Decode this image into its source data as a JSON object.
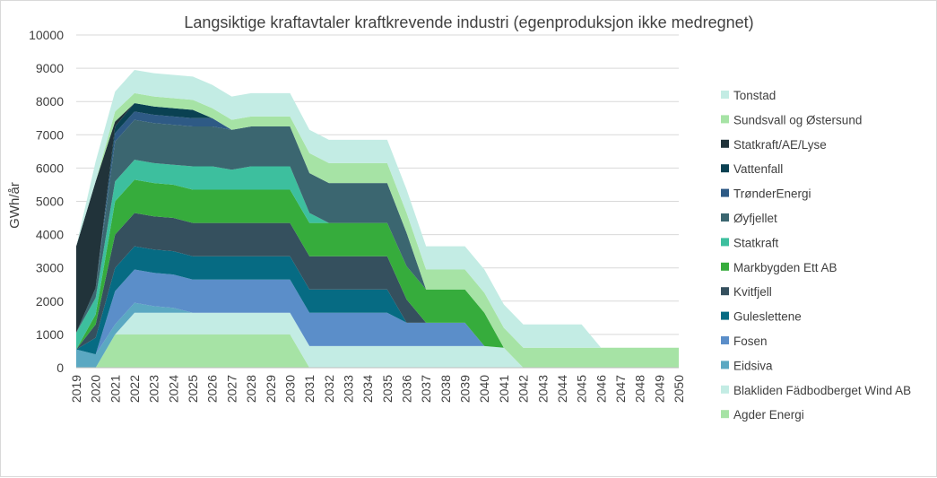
{
  "chart_data": {
    "type": "area",
    "stacked": true,
    "title": "Langsiktige kraftavtaler kraftkrevende industri (egenproduksjon ikke medregnet)",
    "xlabel": "",
    "ylabel": "GWh/år",
    "ylim": [
      0,
      10000
    ],
    "yticks": [
      0,
      1000,
      2000,
      3000,
      4000,
      5000,
      6000,
      7000,
      8000,
      9000,
      10000
    ],
    "ytick_labels": [
      "0",
      "1000",
      "2000",
      "3000",
      "4000",
      "5000",
      "6000",
      "7000",
      "8000",
      "9000",
      "10000"
    ],
    "categories": [
      "2019",
      "2020",
      "2021",
      "2022",
      "2023",
      "2024",
      "2025",
      "2026",
      "2027",
      "2028",
      "2029",
      "2030",
      "2031",
      "2032",
      "2033",
      "2034",
      "2035",
      "2036",
      "2037",
      "2038",
      "2039",
      "2040",
      "2041",
      "2042",
      "2043",
      "2044",
      "2045",
      "2046",
      "2047",
      "2048",
      "2049",
      "2050"
    ],
    "gridlines": true,
    "legend_position": "right",
    "series": [
      {
        "name": "Agder Energi",
        "color": "#a6e3a5",
        "values": [
          0,
          0,
          1000,
          1000,
          1000,
          1000,
          1000,
          1000,
          1000,
          1000,
          1000,
          1000,
          0,
          0,
          0,
          0,
          0,
          0,
          0,
          0,
          0,
          0,
          0,
          0,
          0,
          0,
          0,
          0,
          0,
          0,
          0,
          0
        ]
      },
      {
        "name": "Blakliden Fädbodberget Wind AB",
        "color": "#c3ece4",
        "values": [
          0,
          0,
          0,
          650,
          650,
          650,
          650,
          650,
          650,
          650,
          650,
          650,
          650,
          650,
          650,
          650,
          650,
          650,
          650,
          650,
          650,
          650,
          600,
          0,
          0,
          0,
          0,
          0,
          0,
          0,
          0,
          0
        ]
      },
      {
        "name": "Eidsiva",
        "color": "#5ba8c2",
        "values": [
          550,
          400,
          300,
          300,
          200,
          150,
          0,
          0,
          0,
          0,
          0,
          0,
          0,
          0,
          0,
          0,
          0,
          0,
          0,
          0,
          0,
          0,
          0,
          0,
          0,
          0,
          0,
          0,
          0,
          0,
          0,
          0
        ]
      },
      {
        "name": "Fosen",
        "color": "#5b8ec9",
        "values": [
          0,
          0,
          1000,
          1000,
          1000,
          1000,
          1000,
          1000,
          1000,
          1000,
          1000,
          1000,
          1000,
          1000,
          1000,
          1000,
          1000,
          700,
          700,
          700,
          700,
          0,
          0,
          0,
          0,
          0,
          0,
          0,
          0,
          0,
          0,
          0
        ]
      },
      {
        "name": "Guleslettene",
        "color": "#066b83",
        "values": [
          0,
          500,
          700,
          700,
          700,
          700,
          700,
          700,
          700,
          700,
          700,
          700,
          700,
          700,
          700,
          700,
          700,
          0,
          0,
          0,
          0,
          0,
          0,
          0,
          0,
          0,
          0,
          0,
          0,
          0,
          0,
          0
        ]
      },
      {
        "name": "Kvitfjell",
        "color": "#35505e",
        "values": [
          0,
          400,
          1000,
          1000,
          1000,
          1000,
          1000,
          1000,
          1000,
          1000,
          1000,
          1000,
          1000,
          1000,
          1000,
          1000,
          1000,
          700,
          0,
          0,
          0,
          0,
          0,
          0,
          0,
          0,
          0,
          0,
          0,
          0,
          0,
          0
        ]
      },
      {
        "name": "Markbygden Ett AB",
        "color": "#36ac3c",
        "values": [
          0,
          300,
          1000,
          1000,
          1000,
          1000,
          1000,
          1000,
          1000,
          1000,
          1000,
          1000,
          1000,
          1000,
          1000,
          1000,
          1000,
          1000,
          1000,
          1000,
          1000,
          1000,
          0,
          0,
          0,
          0,
          0,
          0,
          0,
          0,
          0,
          0
        ]
      },
      {
        "name": "Statkraft",
        "color": "#3dbf9e",
        "values": [
          500,
          500,
          600,
          600,
          600,
          600,
          700,
          700,
          600,
          700,
          700,
          700,
          300,
          0,
          0,
          0,
          0,
          0,
          0,
          0,
          0,
          0,
          0,
          0,
          0,
          0,
          0,
          0,
          0,
          0,
          0,
          0
        ]
      },
      {
        "name": "Øyfjellet",
        "color": "#3b6670",
        "values": [
          0,
          300,
          1200,
          1200,
          1200,
          1200,
          1200,
          1200,
          1200,
          1200,
          1200,
          1200,
          1200,
          1200,
          1200,
          1200,
          1200,
          1000,
          0,
          0,
          0,
          0,
          0,
          0,
          0,
          0,
          0,
          0,
          0,
          0,
          0,
          0
        ]
      },
      {
        "name": "TrønderEnergi",
        "color": "#2e5a85",
        "values": [
          0,
          0,
          250,
          250,
          250,
          250,
          250,
          250,
          0,
          0,
          0,
          0,
          0,
          0,
          0,
          0,
          0,
          0,
          0,
          0,
          0,
          0,
          0,
          0,
          0,
          0,
          0,
          0,
          0,
          0,
          0,
          0
        ]
      },
      {
        "name": "Vattenfall",
        "color": "#0a4152",
        "values": [
          0,
          0,
          200,
          250,
          250,
          250,
          250,
          0,
          0,
          0,
          0,
          0,
          0,
          0,
          0,
          0,
          0,
          0,
          0,
          0,
          0,
          0,
          0,
          0,
          0,
          0,
          0,
          0,
          0,
          0,
          0,
          0
        ]
      },
      {
        "name": "Statkraft/AE/Lyse",
        "color": "#21333a",
        "values": [
          2600,
          3200,
          150,
          0,
          0,
          0,
          0,
          0,
          0,
          0,
          0,
          0,
          0,
          0,
          0,
          0,
          0,
          0,
          0,
          0,
          0,
          0,
          0,
          0,
          0,
          0,
          0,
          0,
          0,
          0,
          0,
          0
        ]
      },
      {
        "name": "Sundsvall og Østersund",
        "color": "#a6e3a5",
        "values": [
          0,
          0,
          300,
          300,
          300,
          300,
          300,
          300,
          300,
          300,
          300,
          300,
          600,
          600,
          600,
          600,
          600,
          600,
          600,
          600,
          600,
          600,
          600,
          600,
          600,
          600,
          600,
          600,
          600,
          600,
          600,
          600
        ]
      },
      {
        "name": "Tonstad",
        "color": "#c3ece4",
        "values": [
          0,
          600,
          600,
          700,
          700,
          700,
          700,
          700,
          700,
          700,
          700,
          700,
          700,
          700,
          700,
          700,
          700,
          700,
          700,
          700,
          700,
          700,
          700,
          700,
          700,
          700,
          700,
          0,
          0,
          0,
          0,
          0
        ]
      }
    ]
  }
}
